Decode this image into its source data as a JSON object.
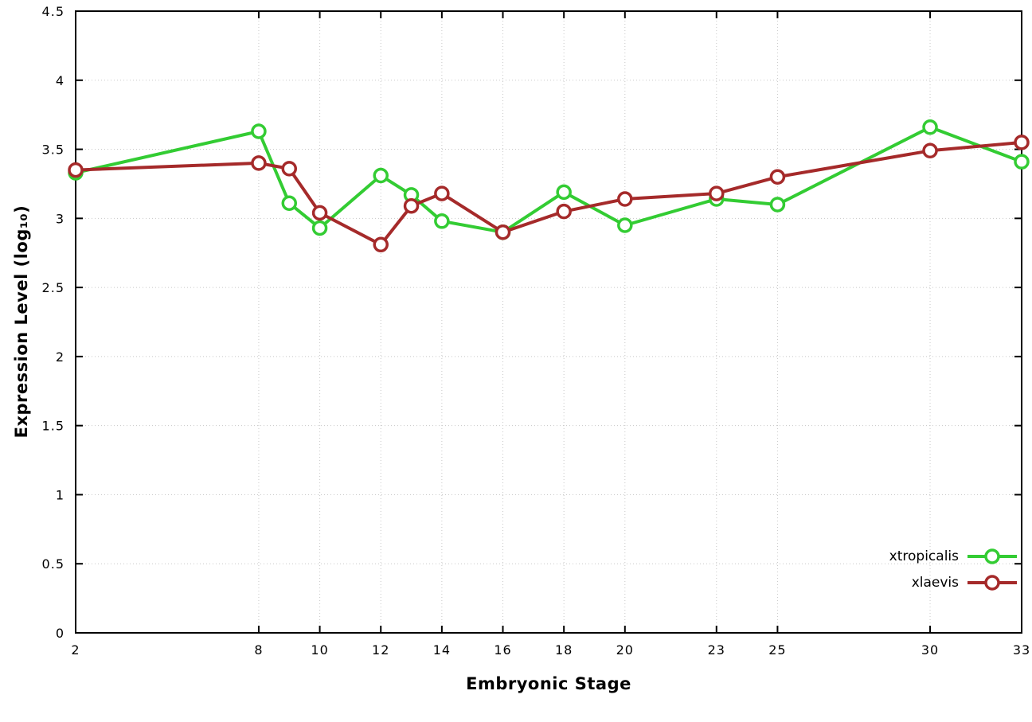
{
  "chart_data": {
    "type": "line",
    "title": "",
    "xlabel": "Embryonic Stage",
    "ylabel": "Expression Level (log₁₀)",
    "xlim": [
      2,
      33
    ],
    "ylim": [
      0,
      4.5
    ],
    "grid": true,
    "grid_style": "dotted",
    "legend_position": "bottom-right",
    "x_ticks": [
      2,
      8,
      10,
      12,
      14,
      16,
      18,
      20,
      23,
      25,
      30,
      33
    ],
    "x_tick_labels": [
      "2",
      "8",
      "10",
      "12",
      "14",
      "16",
      "18",
      "20",
      "23",
      "25",
      "30",
      "33"
    ],
    "y_ticks": [
      0,
      0.5,
      1,
      1.5,
      2,
      2.5,
      3,
      3.5,
      4,
      4.5
    ],
    "y_tick_labels": [
      "0",
      "0.5",
      "1",
      "1.5",
      "2",
      "2.5",
      "3",
      "3.5",
      "4",
      "4.5"
    ],
    "x": [
      2,
      8,
      9,
      10,
      12,
      13,
      14,
      16,
      18,
      20,
      23,
      25,
      30,
      33
    ],
    "series": [
      {
        "name": "xtropicalis",
        "color": "#33cc33",
        "marker": "open-circle",
        "values": [
          3.33,
          3.63,
          3.11,
          2.93,
          3.31,
          3.17,
          2.98,
          2.9,
          3.19,
          2.95,
          3.14,
          3.1,
          3.66,
          3.41
        ]
      },
      {
        "name": "xlaevis",
        "color": "#a52a2a",
        "marker": "open-circle",
        "values": [
          3.35,
          3.4,
          3.36,
          3.04,
          2.81,
          3.09,
          3.18,
          2.9,
          3.05,
          3.14,
          3.18,
          3.3,
          3.49,
          3.55
        ]
      }
    ],
    "colors": {
      "axis": "#000000",
      "grid": "#c8c8c8",
      "background": "#ffffff",
      "marker_fill": "#ffffff"
    }
  }
}
